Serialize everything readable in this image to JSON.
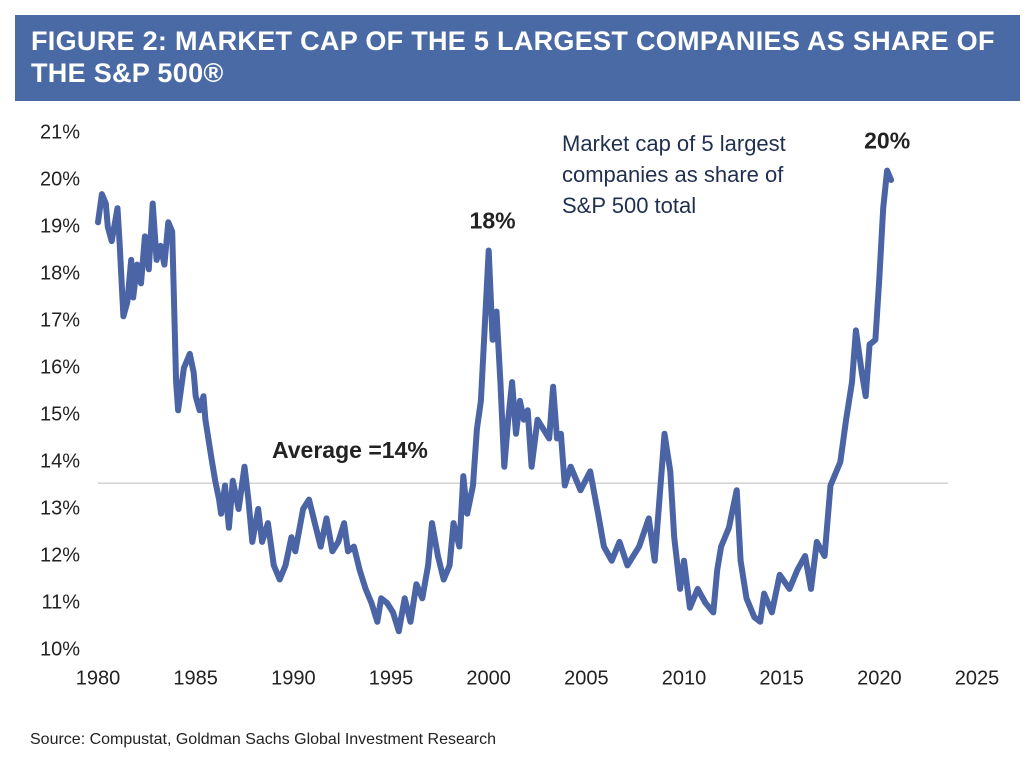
{
  "chart_data": {
    "type": "line",
    "title": "FIGURE 2:  MARKET CAP OF THE 5 LARGEST COMPANIES AS SHARE OF THE S&P 500®",
    "source": "Source: Compustat, Goldman Sachs Global Investment Research",
    "xlim": [
      1980,
      2025
    ],
    "xticks": [
      1980,
      1985,
      1990,
      1995,
      2000,
      2005,
      2010,
      2015,
      2020,
      2025
    ],
    "ylim": [
      10,
      21
    ],
    "yticks": [
      {
        "value": 10,
        "label": "10%"
      },
      {
        "value": 11,
        "label": "11%"
      },
      {
        "value": 12,
        "label": "12%"
      },
      {
        "value": 13,
        "label": "13%"
      },
      {
        "value": 14,
        "label": "14%"
      },
      {
        "value": 15,
        "label": "15%"
      },
      {
        "value": 16,
        "label": "16%"
      },
      {
        "value": 17,
        "label": "17%"
      },
      {
        "value": 18,
        "label": "18%"
      },
      {
        "value": 19,
        "label": "19%"
      },
      {
        "value": 20,
        "label": "20%"
      },
      {
        "value": 21,
        "label": "21%"
      }
    ],
    "average": {
      "value": 13.55,
      "label": "Average =14%"
    },
    "annotations": [
      {
        "text": "18%",
        "x": 2000.2,
        "y": 18.5
      },
      {
        "text": "20%",
        "x": 2020.4,
        "y": 20.2
      }
    ],
    "series": [
      {
        "name": "Market cap of 5 largest companies as share of S&P 500 total",
        "color": "#4a64a5",
        "x": [
          1980.0,
          1980.2,
          1980.4,
          1980.5,
          1980.7,
          1981.0,
          1981.1,
          1981.3,
          1981.5,
          1981.7,
          1981.8,
          1982.0,
          1982.2,
          1982.4,
          1982.6,
          1982.8,
          1983.0,
          1983.2,
          1983.4,
          1983.6,
          1983.8,
          1984.0,
          1984.1,
          1984.4,
          1984.7,
          1984.9,
          1985.0,
          1985.2,
          1985.4,
          1985.5,
          1985.8,
          1986.0,
          1986.2,
          1986.3,
          1986.5,
          1986.7,
          1986.9,
          1987.2,
          1987.5,
          1987.7,
          1987.9,
          1988.2,
          1988.4,
          1988.7,
          1989.0,
          1989.3,
          1989.6,
          1989.9,
          1990.1,
          1990.5,
          1990.8,
          1991.1,
          1991.4,
          1991.7,
          1992.0,
          1992.3,
          1992.6,
          1992.8,
          1993.1,
          1993.4,
          1993.7,
          1994.0,
          1994.3,
          1994.5,
          1994.8,
          1995.1,
          1995.4,
          1995.7,
          1996.0,
          1996.3,
          1996.6,
          1996.9,
          1997.1,
          1997.4,
          1997.7,
          1998.0,
          1998.2,
          1998.5,
          1998.7,
          1998.9,
          1999.2,
          1999.4,
          1999.6,
          1999.8,
          2000.0,
          2000.2,
          2000.4,
          2000.6,
          2000.8,
          2001.0,
          2001.2,
          2001.4,
          2001.6,
          2001.8,
          2002.0,
          2002.2,
          2002.5,
          2002.8,
          2003.1,
          2003.3,
          2003.5,
          2003.7,
          2003.9,
          2004.2,
          2004.7,
          2005.2,
          2005.6,
          2005.9,
          2006.3,
          2006.7,
          2007.1,
          2007.7,
          2008.2,
          2008.5,
          2009.0,
          2009.3,
          2009.5,
          2009.8,
          2010.0,
          2010.3,
          2010.7,
          2011.1,
          2011.5,
          2011.7,
          2011.9,
          2012.3,
          2012.7,
          2012.9,
          2013.2,
          2013.6,
          2013.9,
          2014.1,
          2014.5,
          2014.9,
          2015.4,
          2015.8,
          2016.2,
          2016.5,
          2016.8,
          2017.2,
          2017.5,
          2018.0,
          2018.3,
          2018.6,
          2018.8,
          2019.1,
          2019.3,
          2019.5,
          2019.8,
          2020.0,
          2020.2,
          2020.4,
          2020.6
        ],
        "values": [
          19.1,
          19.7,
          19.5,
          19.0,
          18.7,
          19.4,
          18.7,
          17.1,
          17.4,
          18.3,
          17.5,
          18.2,
          17.8,
          18.8,
          18.1,
          19.5,
          18.3,
          18.6,
          18.2,
          19.1,
          18.9,
          15.7,
          15.1,
          16.0,
          16.3,
          15.9,
          15.4,
          15.1,
          15.4,
          14.9,
          14.1,
          13.6,
          13.2,
          12.9,
          13.5,
          12.6,
          13.6,
          13.0,
          13.9,
          13.2,
          12.3,
          13.0,
          12.3,
          12.7,
          11.8,
          11.5,
          11.8,
          12.4,
          12.1,
          13.0,
          13.2,
          12.7,
          12.2,
          12.8,
          12.1,
          12.3,
          12.7,
          12.1,
          12.2,
          11.7,
          11.3,
          11.0,
          10.6,
          11.1,
          11.0,
          10.8,
          10.4,
          11.1,
          10.6,
          11.4,
          11.1,
          11.8,
          12.7,
          12.0,
          11.5,
          11.8,
          12.7,
          12.2,
          13.7,
          12.9,
          13.5,
          14.7,
          15.3,
          16.9,
          18.5,
          16.6,
          17.2,
          15.7,
          13.9,
          14.9,
          15.7,
          14.6,
          15.3,
          14.9,
          15.1,
          13.9,
          14.9,
          14.7,
          14.5,
          15.6,
          14.5,
          14.6,
          13.5,
          13.9,
          13.4,
          13.8,
          12.9,
          12.2,
          11.9,
          12.3,
          11.8,
          12.2,
          12.8,
          11.9,
          14.6,
          13.8,
          12.4,
          11.3,
          11.9,
          10.9,
          11.3,
          11.0,
          10.8,
          11.7,
          12.2,
          12.6,
          13.4,
          11.9,
          11.1,
          10.7,
          10.6,
          11.2,
          10.8,
          11.6,
          11.3,
          11.7,
          12.0,
          11.3,
          12.3,
          12.0,
          13.5,
          14.0,
          14.9,
          15.7,
          16.8,
          15.9,
          15.4,
          16.5,
          16.6,
          17.9,
          19.4,
          20.2,
          20.0
        ]
      }
    ]
  }
}
